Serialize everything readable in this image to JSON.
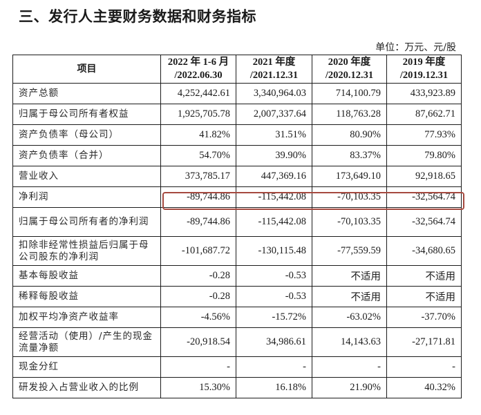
{
  "section_title": "三、发行人主要财务数据和财务指标",
  "unit_note": "单位：万元、元/股",
  "table": {
    "headers": [
      {
        "line1": "项目",
        "line2": ""
      },
      {
        "line1": "2022 年 1-6 月",
        "line2": "/2022.06.30"
      },
      {
        "line1": "2021 年度",
        "line2": "/2021.12.31"
      },
      {
        "line1": "2020 年度",
        "line2": "/2020.12.31"
      },
      {
        "line1": "2019 年度",
        "line2": "/2019.12.31"
      }
    ],
    "rows": [
      {
        "label": "资产总额",
        "values": [
          "4,252,442.61",
          "3,340,964.03",
          "714,100.79",
          "433,923.89"
        ]
      },
      {
        "label": "归属于母公司所有者权益",
        "values": [
          "1,925,705.78",
          "2,007,337.64",
          "118,763.28",
          "87,662.71"
        ]
      },
      {
        "label": "资产负债率（母公司）",
        "values": [
          "41.82%",
          "31.51%",
          "80.90%",
          "77.93%"
        ]
      },
      {
        "label": "资产负债率（合并）",
        "values": [
          "54.70%",
          "39.90%",
          "83.37%",
          "79.80%"
        ]
      },
      {
        "label": "营业收入",
        "values": [
          "373,785.17",
          "447,369.16",
          "173,649.10",
          "92,918.65"
        ]
      },
      {
        "label": "净利润",
        "values": [
          "-89,744.86",
          "-115,442.08",
          "-70,103.35",
          "-32,564.74"
        ],
        "highlighted": true
      },
      {
        "label": "归属于母公司所有者的净利润",
        "values": [
          "-89,744.86",
          "-115,442.08",
          "-70,103.35",
          "-32,564.74"
        ]
      },
      {
        "label": "扣除非经常性损益后归属于母公司股东的净利润",
        "values": [
          "-101,687.72",
          "-130,115.48",
          "-77,559.59",
          "-34,680.65"
        ]
      },
      {
        "label": "基本每股收益",
        "values": [
          "-0.28",
          "-0.53",
          "不适用",
          "不适用"
        ]
      },
      {
        "label": "稀释每股收益",
        "values": [
          "-0.28",
          "-0.53",
          "不适用",
          "不适用"
        ]
      },
      {
        "label": "加权平均净资产收益率",
        "values": [
          "-4.56%",
          "-15.72%",
          "-63.02%",
          "-37.70%"
        ]
      },
      {
        "label": "经营活动（使用）/产生的现金流量净额",
        "values": [
          "-20,918.54",
          "34,986.61",
          "14,143.63",
          "-27,171.81"
        ]
      },
      {
        "label": "现金分红",
        "values": [
          "-",
          "-",
          "-",
          "-"
        ]
      },
      {
        "label": "研发投入占营业收入的比例",
        "values": [
          "15.30%",
          "16.18%",
          "21.90%",
          "40.32%"
        ]
      }
    ]
  },
  "highlight_color": "#a5493f"
}
